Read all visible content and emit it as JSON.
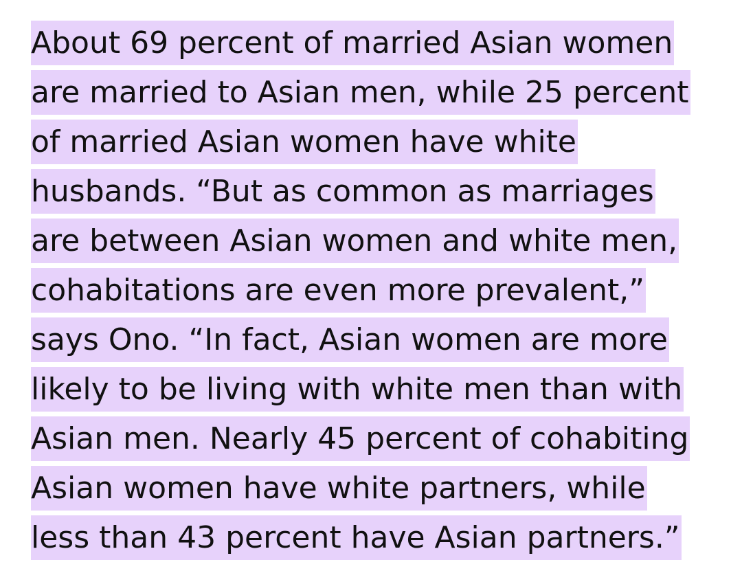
{
  "article": {
    "highlight_color": "#e7d2fb",
    "lines": [
      "About 69 percent of married Asian women",
      "are married to Asian men, while 25 percent",
      "of married Asian women have white",
      "husbands. “But as common as marriages",
      "are between Asian women and white men,",
      "cohabitations are even more prevalent,”",
      "says Ono. “In fact, Asian women are more",
      "likely to be living with white men than with",
      "Asian men. Nearly 45 percent of cohabiting",
      "Asian women have white partners, while",
      "less than 43 percent have Asian partners.”"
    ]
  }
}
